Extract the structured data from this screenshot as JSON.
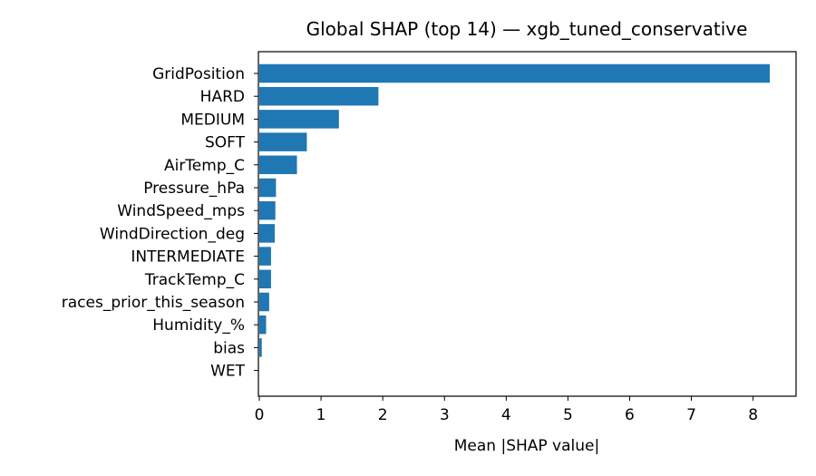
{
  "chart_data": {
    "type": "bar",
    "orientation": "horizontal",
    "title": "Global SHAP (top 14) — xgb_tuned_conservative",
    "xlabel": "Mean |SHAP value|",
    "ylabel": "",
    "categories": [
      "GridPosition",
      "HARD",
      "MEDIUM",
      "SOFT",
      "AirTemp_C",
      "Pressure_hPa",
      "WindSpeed_mps",
      "WindDirection_deg",
      "INTERMEDIATE",
      "TrackTemp_C",
      "races_prior_this_season",
      "Humidity_%",
      "bias",
      "WET"
    ],
    "values": [
      8.27,
      1.93,
      1.29,
      0.77,
      0.61,
      0.27,
      0.26,
      0.25,
      0.19,
      0.19,
      0.16,
      0.11,
      0.04,
      0.0
    ],
    "xlim": [
      0,
      8.7
    ],
    "xticks": [
      0,
      1,
      2,
      3,
      4,
      5,
      6,
      7,
      8
    ],
    "grid": false,
    "bar_color": "#1f77b4"
  }
}
